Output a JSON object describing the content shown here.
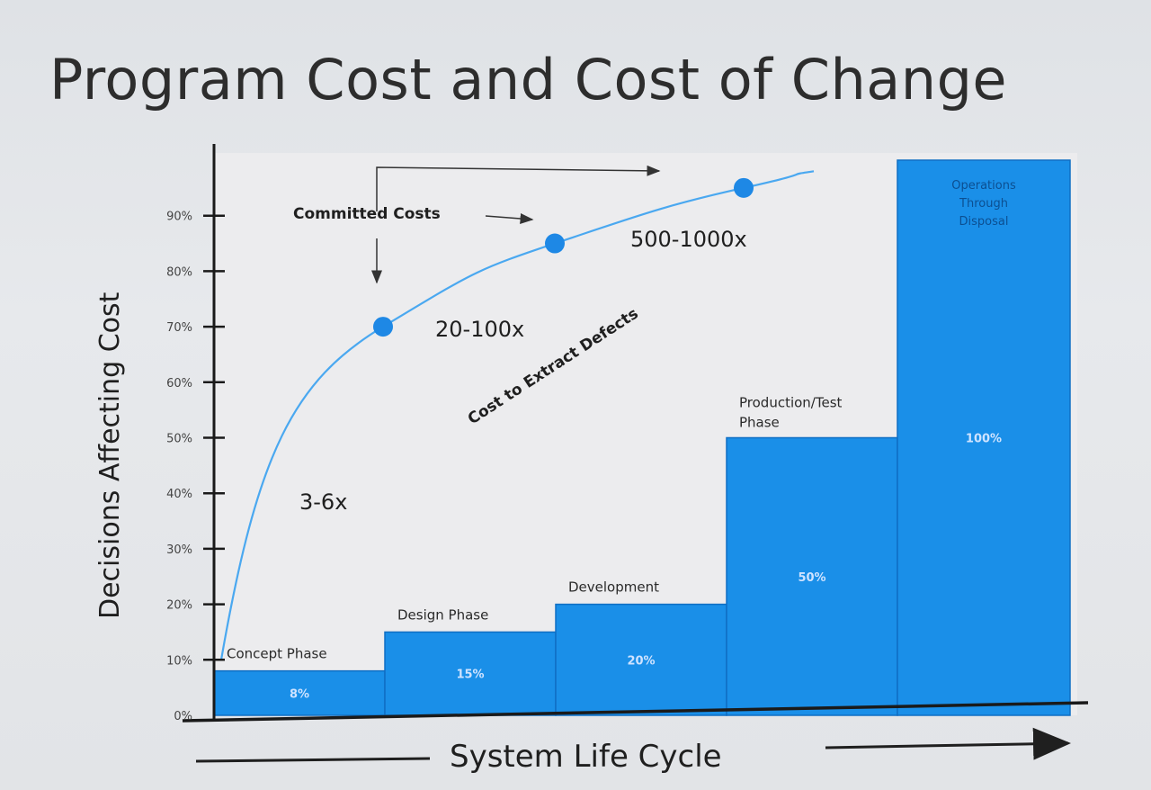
{
  "slide": {
    "title": "Program Cost and Cost of Change"
  },
  "colors": {
    "bar": "#1a8fe8",
    "bar_edge": "#0f6fc4",
    "curve": "#4aa8f0",
    "dot": "#1e88e5",
    "axis": "#1a1a1a",
    "plot_bg": "#eeeeef"
  },
  "chart_data": {
    "type": "bar",
    "title": "Program Cost and Cost of Change",
    "ylabel": "Decisions Affecting Cost",
    "xlabel": "System Life Cycle",
    "ylim": [
      0,
      100
    ],
    "yticks": [
      "0%",
      "10%",
      "20%",
      "30%",
      "40%",
      "50%",
      "60%",
      "70%",
      "80%",
      "90%"
    ],
    "ytick_values": [
      0,
      10,
      20,
      30,
      40,
      50,
      60,
      70,
      80,
      90
    ],
    "categories": [
      "Concept Phase",
      "Design Phase",
      "Development",
      "Production/Test Phase",
      "Operations Through Disposal"
    ],
    "category_lines": [
      [
        "Concept Phase"
      ],
      [
        "Design Phase"
      ],
      [
        "Development"
      ],
      [
        "Production/Test",
        "Phase"
      ],
      [
        "Operations",
        "Through",
        "Disposal"
      ]
    ],
    "values": [
      8,
      15,
      20,
      50,
      100
    ],
    "value_labels": [
      "8%",
      "15%",
      "20%",
      "50%",
      "100%"
    ],
    "committed_costs_curve": {
      "name": "Committed Costs",
      "points": [
        [
          0,
          10
        ],
        [
          1,
          70
        ],
        [
          2,
          85
        ],
        [
          3,
          95
        ],
        [
          4,
          98
        ]
      ]
    },
    "annotations": {
      "committed_costs": "Committed Costs",
      "cost_to_extract": "Cost to Extract Defects",
      "multipliers": [
        "3-6x",
        "20-100x",
        "500-1000x"
      ]
    },
    "grid": false
  }
}
